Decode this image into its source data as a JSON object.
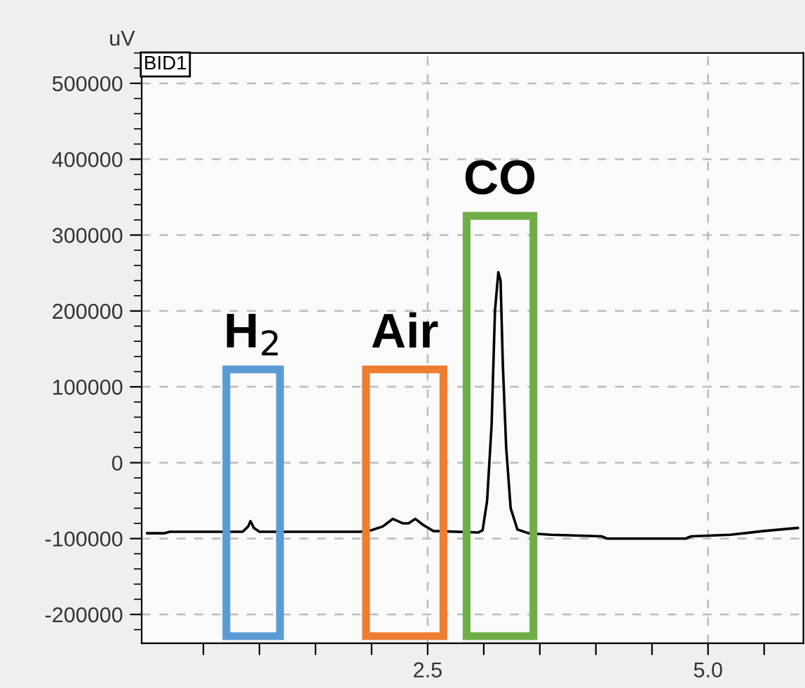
{
  "chart_data": {
    "type": "line",
    "ylabel": "uV",
    "series": [
      {
        "color": "#000000",
        "x": [
          0,
          0.15,
          0.2,
          0.85,
          0.9,
          0.92,
          0.95,
          1.0,
          1.9,
          2.0,
          2.1,
          2.19,
          2.28,
          2.33,
          2.39,
          2.46,
          2.55,
          2.95,
          2.99,
          3.03,
          3.07,
          3.1,
          3.13,
          3.15,
          3.17,
          3.2,
          3.24,
          3.3,
          3.4,
          3.6,
          4.05,
          4.1,
          4.8,
          4.85,
          5.2,
          5.5,
          5.8
        ],
        "values": [
          -93000,
          -93000,
          -91000,
          -91000,
          -84000,
          -77000,
          -86000,
          -91000,
          -91000,
          -89000,
          -84000,
          -74000,
          -80000,
          -80000,
          -74000,
          -82000,
          -90000,
          -92000,
          -89000,
          -50000,
          50000,
          200000,
          251000,
          240000,
          130000,
          20000,
          -60000,
          -88000,
          -93000,
          -95000,
          -97000,
          -100000,
          -100000,
          -97000,
          -95000,
          -90000,
          -86000
        ]
      }
    ],
    "xlim": [
      -0.05,
      5.85
    ],
    "xticks": [
      {
        "value": 0.5,
        "label": null
      },
      {
        "value": 1.0,
        "label": null
      },
      {
        "value": 1.5,
        "label": null
      },
      {
        "value": 2.0,
        "label": null
      },
      {
        "value": 2.5,
        "label": "2.5"
      },
      {
        "value": 3.0,
        "label": null
      },
      {
        "value": 3.5,
        "label": null
      },
      {
        "value": 4.0,
        "label": null
      },
      {
        "value": 4.5,
        "label": null
      },
      {
        "value": 5.0,
        "label": "5.0"
      },
      {
        "value": 5.5,
        "label": null
      }
    ],
    "ylim": [
      -238000,
      540000
    ],
    "yticks": [
      -200000,
      -100000,
      0,
      100000,
      200000,
      300000,
      400000,
      500000
    ],
    "grid": true,
    "annotations": [
      "H$_{2}$",
      "Air",
      "CO",
      "BID1"
    ]
  }
}
